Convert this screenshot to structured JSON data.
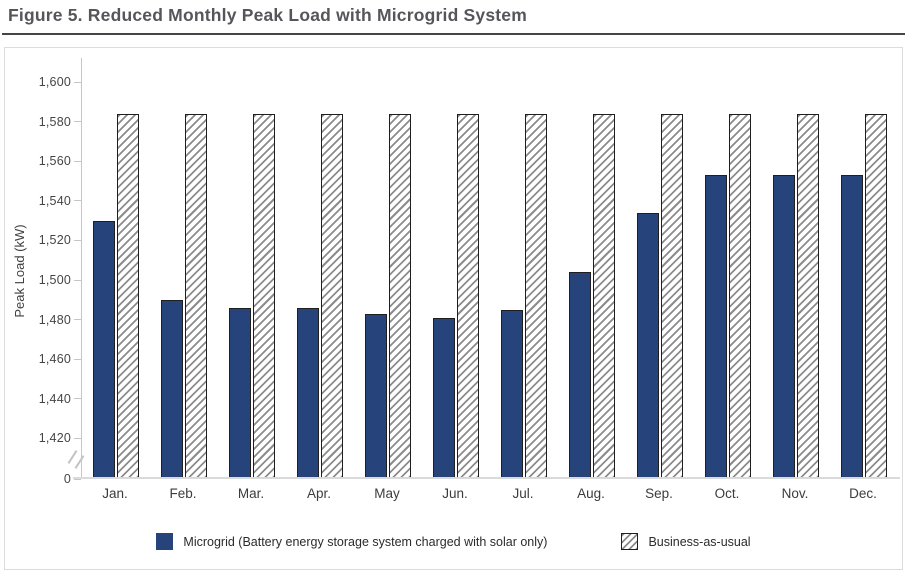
{
  "page": {
    "title": "Figure 5. Reduced Monthly Peak Load with Microgrid System"
  },
  "chart_data": {
    "type": "bar",
    "title": "Figure 5. Reduced Monthly Peak Load with Microgrid System",
    "xlabel": "",
    "ylabel": "Peak Load (kW)",
    "categories": [
      "Jan.",
      "Feb.",
      "Mar.",
      "Apr.",
      "May",
      "Jun.",
      "Jul.",
      "Aug.",
      "Sep.",
      "Oct.",
      "Nov.",
      "Dec."
    ],
    "series": [
      {
        "name": "Microgrid (Battery energy storage system charged with solar only)",
        "pattern": "solid",
        "color": "#26437c",
        "values": [
          1530,
          1490,
          1486,
          1486,
          1483,
          1481,
          1485,
          1504,
          1534,
          1553,
          1553,
          1553
        ]
      },
      {
        "name": "Business-as-usual",
        "pattern": "hatched",
        "color": "#8c8c8c",
        "values": [
          1584,
          1584,
          1584,
          1584,
          1584,
          1584,
          1584,
          1584,
          1584,
          1584,
          1584,
          1584
        ]
      }
    ],
    "yticks": [
      {
        "label": "1,600",
        "value": 1600
      },
      {
        "label": "1,580",
        "value": 1580
      },
      {
        "label": "1,560",
        "value": 1560
      },
      {
        "label": "1,540",
        "value": 1540
      },
      {
        "label": "1,520",
        "value": 1520
      },
      {
        "label": "1,500",
        "value": 1500
      },
      {
        "label": "1,480",
        "value": 1480
      },
      {
        "label": "1,460",
        "value": 1460
      },
      {
        "label": "1,440",
        "value": 1440
      },
      {
        "label": "1,420",
        "value": 1420
      },
      {
        "label": "0",
        "value": 0
      }
    ],
    "ylim_display": [
      1420,
      1600
    ],
    "axis_break_between": [
      0,
      1420
    ],
    "grid": "off",
    "legend_position": "bottom"
  },
  "colors": {
    "microgrid_bar": "#26437c",
    "bar_outline": "#1f1f1f",
    "hatch_line": "#8c8c8c",
    "axis_line": "#c6c6c6",
    "baseline": "#dadada",
    "tick_text": "#454545",
    "title_text": "#55565a",
    "title_rule": "#454545",
    "figure_border": "#dcdcdc"
  }
}
